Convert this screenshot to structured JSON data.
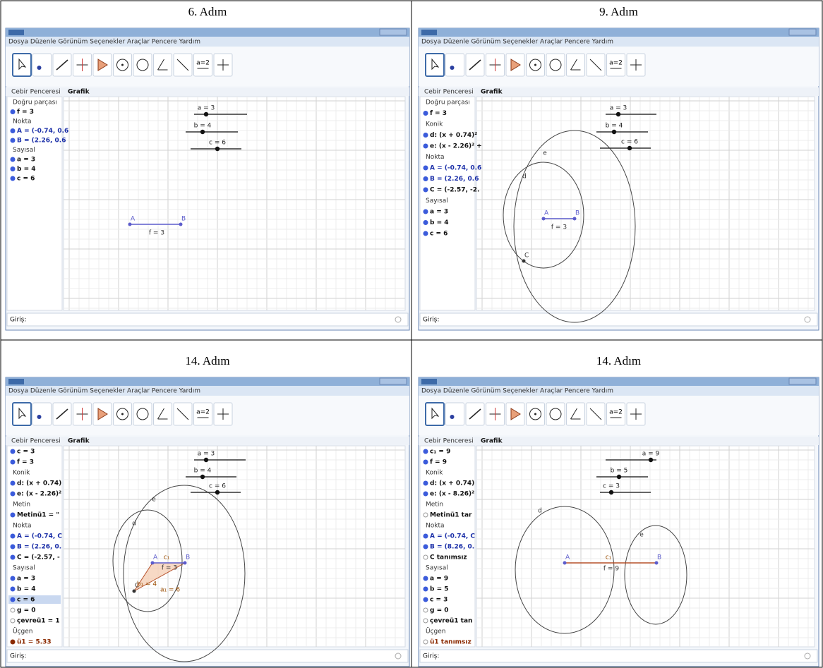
{
  "ui": {
    "menu": "Dosya Düzenle Görünüm Seçenekler Araçlar Pencere Yardım",
    "algebra_view": "Cebir Penceresi",
    "graphics_view": "Grafik",
    "input_label": "Giriş:",
    "slider_icon": "a=2"
  },
  "panels": [
    {
      "caption": "6. Adım",
      "algebra": [
        {
          "text": "Doğru parçası",
          "style": "group"
        },
        {
          "text": "f = 3",
          "style": "dark"
        },
        {
          "text": "Nokta",
          "style": "group"
        },
        {
          "text": "A = (-0.74, 0.6",
          "style": "blue"
        },
        {
          "text": "B = (2.26, 0.6",
          "style": "blue"
        },
        {
          "text": "Sayısal",
          "style": "group"
        },
        {
          "text": "a = 3",
          "style": "dark"
        },
        {
          "text": "b = 4",
          "style": "dark"
        },
        {
          "text": "c = 6",
          "style": "dark"
        }
      ],
      "sliders": [
        "a = 3",
        "b = 4",
        "c = 6"
      ],
      "points": [
        "A",
        "B"
      ],
      "labels": [
        "f = 3"
      ]
    },
    {
      "caption": "9. Adım",
      "algebra": [
        {
          "text": "Doğru parçası",
          "style": "group"
        },
        {
          "text": "f = 3",
          "style": "dark"
        },
        {
          "text": "Konik",
          "style": "group"
        },
        {
          "text": "d: (x + 0.74)²",
          "style": "dark"
        },
        {
          "text": "e: (x - 2.26)² +",
          "style": "dark"
        },
        {
          "text": "Nokta",
          "style": "group"
        },
        {
          "text": "A = (-0.74, 0.6",
          "style": "blue"
        },
        {
          "text": "B = (2.26, 0.6",
          "style": "blue"
        },
        {
          "text": "C = (-2.57, -2.",
          "style": "dark"
        },
        {
          "text": "Sayısal",
          "style": "group"
        },
        {
          "text": "a = 3",
          "style": "dark"
        },
        {
          "text": "b = 4",
          "style": "dark"
        },
        {
          "text": "c = 6",
          "style": "dark"
        }
      ],
      "sliders": [
        "a = 3",
        "b = 4",
        "c = 6"
      ],
      "points": [
        "A",
        "B",
        "C"
      ],
      "labels": [
        "f = 3",
        "d",
        "e"
      ]
    },
    {
      "caption": "14. Adım",
      "algebra": [
        {
          "text": "c = 3",
          "style": "dark"
        },
        {
          "text": "f = 3",
          "style": "dark"
        },
        {
          "text": "Konik",
          "style": "group"
        },
        {
          "text": "d: (x + 0.74)",
          "style": "dark"
        },
        {
          "text": "e: (x - 2.26)²",
          "style": "dark"
        },
        {
          "text": "Metin",
          "style": "group"
        },
        {
          "text": "Metinü1 = \"",
          "style": "dark"
        },
        {
          "text": "Nokta",
          "style": "group"
        },
        {
          "text": "A = (-0.74, C",
          "style": "blue"
        },
        {
          "text": "B = (2.26, 0.",
          "style": "blue"
        },
        {
          "text": "C = (-2.57, -",
          "style": "dark"
        },
        {
          "text": "Sayısal",
          "style": "group"
        },
        {
          "text": "a = 3",
          "style": "dark"
        },
        {
          "text": "b = 4",
          "style": "dark"
        },
        {
          "text": "c = 6",
          "style": "selected"
        },
        {
          "text": "g = 0",
          "style": "hollow"
        },
        {
          "text": "çevreü1 = 1",
          "style": "hollow"
        },
        {
          "text": "Üçgen",
          "style": "group"
        },
        {
          "text": "ü1 = 5.33",
          "style": "brown"
        }
      ],
      "sliders": [
        "a = 3",
        "b = 4",
        "c = 6"
      ],
      "points": [
        "A",
        "B",
        "C"
      ],
      "labels": [
        "c₁",
        "f = 3",
        "b₁ = 4",
        "a₁ = 6",
        "d",
        "e"
      ]
    },
    {
      "caption": "14. Adım",
      "algebra": [
        {
          "text": "c₁ = 9",
          "style": "dark"
        },
        {
          "text": "f = 9",
          "style": "dark"
        },
        {
          "text": "Konik",
          "style": "group"
        },
        {
          "text": "d: (x + 0.74)",
          "style": "dark"
        },
        {
          "text": "e: (x - 8.26)²",
          "style": "dark"
        },
        {
          "text": "Metin",
          "style": "group"
        },
        {
          "text": "Metinü1 tar",
          "style": "hollow"
        },
        {
          "text": "Nokta",
          "style": "group"
        },
        {
          "text": "A = (-0.74, C",
          "style": "blue"
        },
        {
          "text": "B = (8.26, 0.",
          "style": "blue"
        },
        {
          "text": "C tanımsız",
          "style": "hollow"
        },
        {
          "text": "Sayısal",
          "style": "group"
        },
        {
          "text": "a = 9",
          "style": "dark"
        },
        {
          "text": "b = 5",
          "style": "dark"
        },
        {
          "text": "c = 3",
          "style": "dark"
        },
        {
          "text": "g = 0",
          "style": "hollow"
        },
        {
          "text": "çevreü1 tan",
          "style": "hollow"
        },
        {
          "text": "Üçgen",
          "style": "group"
        },
        {
          "text": "ü1 tanımsız",
          "style": "brownhollow"
        }
      ],
      "sliders": [
        "a = 9",
        "b = 5",
        "c = 3"
      ],
      "points": [
        "A",
        "B"
      ],
      "labels": [
        "c₁",
        "f = 9",
        "d",
        "e"
      ]
    }
  ]
}
